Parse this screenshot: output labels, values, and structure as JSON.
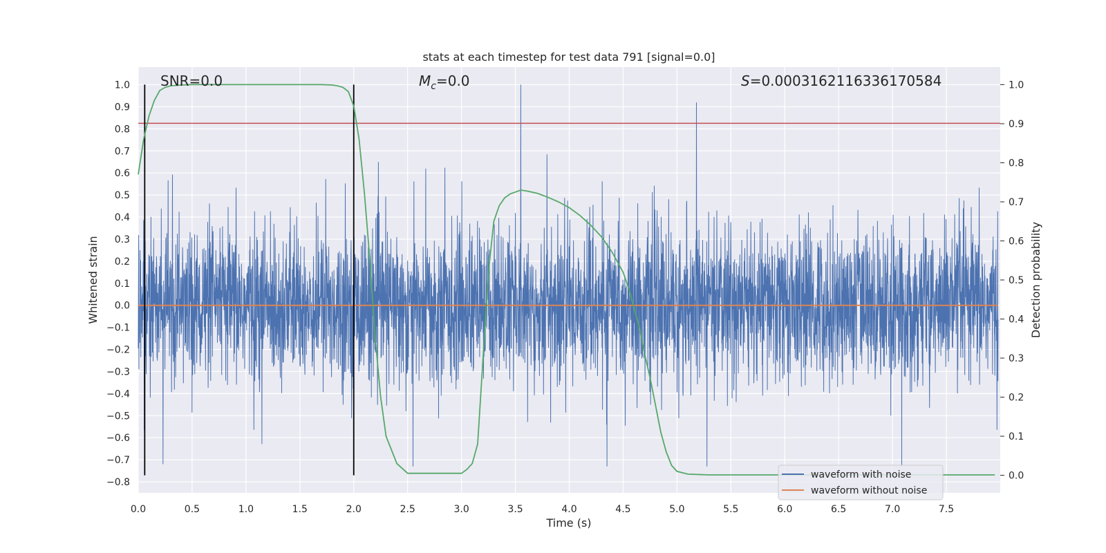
{
  "chart_data": {
    "type": "line",
    "title": "stats at each timestep for test data 791 [signal=0.0]",
    "xlabel": "Time (s)",
    "ylabel": "Whitened strain",
    "y2label": "Detection probability",
    "xlim": [
      0.0,
      8.0
    ],
    "ylim": [
      -0.85,
      1.08
    ],
    "y2lim": [
      -0.045,
      1.045
    ],
    "xticks": [
      0.0,
      0.5,
      1.0,
      1.5,
      2.0,
      2.5,
      3.0,
      3.5,
      4.0,
      4.5,
      5.0,
      5.5,
      6.0,
      6.5,
      7.0,
      7.5
    ],
    "xtick_labels": [
      "0.0",
      "0.5",
      "1.0",
      "1.5",
      "2.0",
      "2.5",
      "3.0",
      "3.5",
      "4.0",
      "4.5",
      "5.0",
      "5.5",
      "6.0",
      "6.5",
      "7.0",
      "7.5"
    ],
    "yticks": [
      1.0,
      0.9,
      0.8,
      0.7,
      0.6,
      0.5,
      0.4,
      0.3,
      0.2,
      0.1,
      0.0,
      -0.1,
      -0.2,
      -0.3,
      -0.4,
      -0.5,
      -0.6,
      -0.7,
      -0.8
    ],
    "ytick_labels": [
      "1.0",
      "0.9",
      "0.8",
      "0.7",
      "0.6",
      "0.5",
      "0.4",
      "0.3",
      "0.2",
      "0.1",
      "0.0",
      "−0.1",
      "−0.2",
      "−0.3",
      "−0.4",
      "−0.5",
      "−0.6",
      "−0.7",
      "−0.8"
    ],
    "y2ticks": [
      1.0,
      0.9,
      0.8,
      0.7,
      0.6,
      0.5,
      0.4,
      0.3,
      0.2,
      0.1,
      0.0
    ],
    "y2tick_labels": [
      "1.0",
      "0.9",
      "0.8",
      "0.7",
      "0.6",
      "0.5",
      "0.4",
      "0.3",
      "0.2",
      "0.1",
      "0.0"
    ],
    "grid": true,
    "series": [
      {
        "name": "waveform with noise",
        "axis": "left",
        "color": "#4c72b0",
        "style": "dense noise",
        "noise_range": [
          -0.75,
          1.0
        ],
        "notable_peaks": [
          [
            3.55,
            1.0
          ],
          [
            5.18,
            0.92
          ],
          [
            0.23,
            -0.72
          ],
          [
            2.55,
            -0.73
          ],
          [
            4.35,
            -0.73
          ]
        ]
      },
      {
        "name": "waveform without noise",
        "axis": "left",
        "color": "#dd8452",
        "constant": 0.0
      },
      {
        "name": "detection probability",
        "axis": "right",
        "color": "#55a868",
        "x": [
          0.0,
          0.05,
          0.1,
          0.15,
          0.2,
          0.25,
          0.3,
          0.4,
          0.5,
          1.0,
          1.5,
          1.7,
          1.8,
          1.85,
          1.9,
          1.95,
          2.0,
          2.05,
          2.1,
          2.15,
          2.2,
          2.25,
          2.3,
          2.4,
          2.5,
          3.0,
          3.05,
          3.1,
          3.15,
          3.2,
          3.25,
          3.3,
          3.35,
          3.4,
          3.45,
          3.5,
          3.55,
          3.6,
          3.7,
          3.8,
          3.9,
          4.0,
          4.1,
          4.2,
          4.3,
          4.4,
          4.5,
          4.55,
          4.6,
          4.65,
          4.7,
          4.75,
          4.8,
          4.85,
          4.9,
          4.95,
          5.0,
          5.1,
          5.3,
          7.95
        ],
        "y": [
          0.77,
          0.86,
          0.92,
          0.96,
          0.985,
          0.993,
          0.997,
          0.999,
          1.0,
          1.0,
          1.0,
          1.0,
          0.999,
          0.997,
          0.993,
          0.982,
          0.945,
          0.86,
          0.72,
          0.55,
          0.35,
          0.2,
          0.1,
          0.03,
          0.005,
          0.005,
          0.015,
          0.03,
          0.08,
          0.3,
          0.52,
          0.65,
          0.69,
          0.71,
          0.72,
          0.725,
          0.73,
          0.728,
          0.722,
          0.712,
          0.7,
          0.685,
          0.665,
          0.64,
          0.61,
          0.57,
          0.52,
          0.48,
          0.43,
          0.38,
          0.31,
          0.25,
          0.18,
          0.11,
          0.06,
          0.025,
          0.01,
          0.003,
          0.001,
          0.001
        ]
      }
    ],
    "vlines": [
      0.06,
      2.0
    ],
    "threshold_line": {
      "axis": "left",
      "y": 0.825,
      "color": "#c44e52"
    },
    "annotations": {
      "snr": "SNR=0.0",
      "mc_symbol": "M",
      "mc_sub": "c",
      "mc_rest": "=0.0",
      "s_symbol": "S",
      "s_rest": "=0.0003162116336170584"
    },
    "legend": {
      "placement": "bottom-right",
      "entries": [
        {
          "label": "waveform with noise",
          "color": "#4c72b0"
        },
        {
          "label": "waveform without noise",
          "color": "#dd8452"
        }
      ]
    },
    "colors": {
      "axes_bg": "#eaeaf2",
      "grid": "#ffffff",
      "text": "#262626"
    }
  }
}
